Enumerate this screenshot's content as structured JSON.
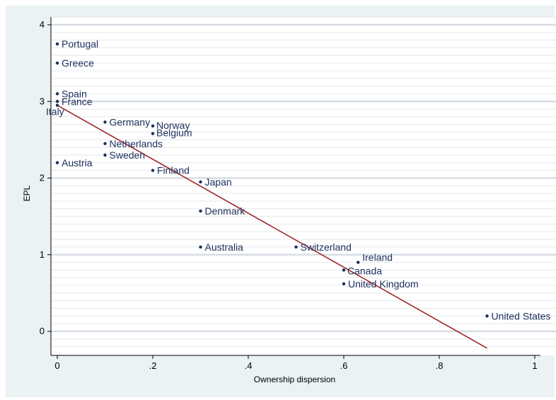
{
  "chart_data": {
    "type": "scatter",
    "title": "",
    "xlabel": "Ownership dispersion",
    "ylabel": "EPL",
    "xlim": [
      0,
      1
    ],
    "ylim": [
      0,
      4
    ],
    "grid": true,
    "x_ticks": [
      "0",
      ".2",
      ".4",
      ".6",
      ".8",
      "1"
    ],
    "y_ticks": [
      "0",
      "1",
      "2",
      "3",
      "4"
    ],
    "points": [
      {
        "label": "Portugal",
        "x": 0.0,
        "y": 3.75
      },
      {
        "label": "Greece",
        "x": 0.0,
        "y": 3.5
      },
      {
        "label": "Spain",
        "x": 0.0,
        "y": 3.1
      },
      {
        "label": "France",
        "x": 0.0,
        "y": 3.0
      },
      {
        "label": "Italy",
        "x": 0.0,
        "y": 2.95
      },
      {
        "label": "Austria",
        "x": 0.0,
        "y": 2.2
      },
      {
        "label": "Germany",
        "x": 0.1,
        "y": 2.73
      },
      {
        "label": "Netherlands",
        "x": 0.1,
        "y": 2.45
      },
      {
        "label": "Sweden",
        "x": 0.1,
        "y": 2.3
      },
      {
        "label": "Norway",
        "x": 0.2,
        "y": 2.68
      },
      {
        "label": "Belgium",
        "x": 0.2,
        "y": 2.58
      },
      {
        "label": "Finland",
        "x": 0.2,
        "y": 2.1
      },
      {
        "label": "Japan",
        "x": 0.3,
        "y": 1.95
      },
      {
        "label": "Denmark",
        "x": 0.3,
        "y": 1.57
      },
      {
        "label": "Australia",
        "x": 0.3,
        "y": 1.1
      },
      {
        "label": "Switzerland",
        "x": 0.5,
        "y": 1.1
      },
      {
        "label": "Ireland",
        "x": 0.63,
        "y": 0.9
      },
      {
        "label": "Canada",
        "x": 0.6,
        "y": 0.8
      },
      {
        "label": "United Kingdom",
        "x": 0.6,
        "y": 0.62
      },
      {
        "label": "United States",
        "x": 0.9,
        "y": 0.2
      }
    ],
    "fit_line": {
      "x": [
        0.0,
        0.9
      ],
      "y": [
        2.95,
        -0.22
      ],
      "color": "#a0282c"
    },
    "colors": {
      "background": "#eaf2f3",
      "plot_bg": "#ffffff",
      "text": "#1c2e5c",
      "marker": "#1c2e5c",
      "grid": "#e4e8ec"
    }
  }
}
